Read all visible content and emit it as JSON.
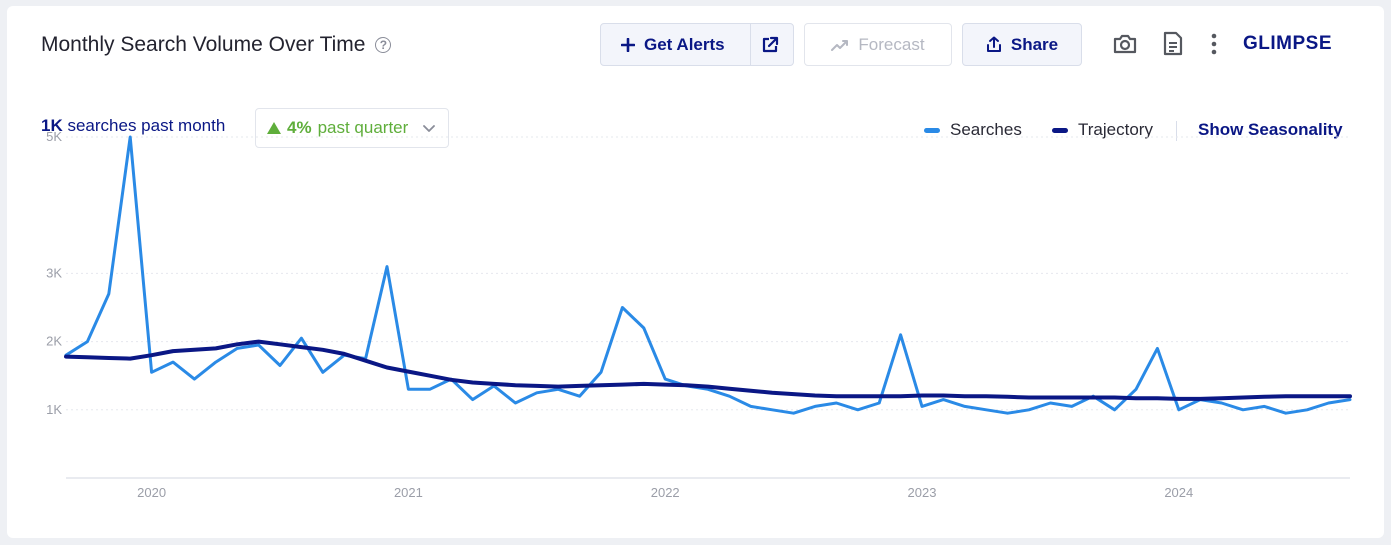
{
  "header": {
    "title": "Monthly Search Volume Over Time",
    "help_icon": "question-circle-icon",
    "buttons": {
      "get_alerts": "Get Alerts",
      "forecast": "Forecast",
      "share": "Share"
    },
    "icons": [
      "plus-icon",
      "external-link-icon",
      "trend-icon",
      "share-upload-icon",
      "camera-icon",
      "document-icon",
      "more-vertical-icon"
    ],
    "logo": "GLIMPSE"
  },
  "summary": {
    "value": "1K",
    "text": "searches past month"
  },
  "quarter": {
    "value": "4%",
    "text": "past quarter",
    "direction": "up"
  },
  "legend": {
    "searches": "Searches",
    "trajectory": "Trajectory",
    "show_seasonality": "Show Seasonality"
  },
  "colors": {
    "searches": "#2a8ae6",
    "trajectory": "#0a1785",
    "accent": "#0a1785",
    "positive": "#5fae3b"
  },
  "chart_data": {
    "type": "line",
    "title": "Monthly Search Volume Over Time",
    "xlabel": "",
    "ylabel": "",
    "x_range": [
      "2019-09",
      "2024-09"
    ],
    "x_ticks": [
      "2020",
      "2021",
      "2022",
      "2023",
      "2024"
    ],
    "y_ticks": [
      "1K",
      "2K",
      "3K",
      "5K"
    ],
    "ylim": [
      0,
      5000
    ],
    "grid": true,
    "legend_position": "top-right",
    "series": [
      {
        "name": "Searches",
        "color": "#2a8ae6",
        "x": [
          "2019-09",
          "2019-10",
          "2019-11",
          "2019-12",
          "2020-01",
          "2020-02",
          "2020-03",
          "2020-04",
          "2020-05",
          "2020-06",
          "2020-07",
          "2020-08",
          "2020-09",
          "2020-10",
          "2020-11",
          "2020-12",
          "2021-01",
          "2021-02",
          "2021-03",
          "2021-04",
          "2021-05",
          "2021-06",
          "2021-07",
          "2021-08",
          "2021-09",
          "2021-10",
          "2021-11",
          "2021-12",
          "2022-01",
          "2022-02",
          "2022-03",
          "2022-04",
          "2022-05",
          "2022-06",
          "2022-07",
          "2022-08",
          "2022-09",
          "2022-10",
          "2022-11",
          "2022-12",
          "2023-01",
          "2023-02",
          "2023-03",
          "2023-04",
          "2023-05",
          "2023-06",
          "2023-07",
          "2023-08",
          "2023-09",
          "2023-10",
          "2023-11",
          "2023-12",
          "2024-01",
          "2024-02",
          "2024-03",
          "2024-04",
          "2024-05",
          "2024-06",
          "2024-07",
          "2024-08",
          "2024-09"
        ],
        "values": [
          1800,
          2000,
          2700,
          5000,
          1550,
          1700,
          1450,
          1700,
          1900,
          1950,
          1650,
          2050,
          1550,
          1800,
          1750,
          3100,
          1300,
          1300,
          1450,
          1150,
          1350,
          1100,
          1250,
          1300,
          1200,
          1550,
          2500,
          2200,
          1450,
          1350,
          1300,
          1200,
          1050,
          1000,
          950,
          1050,
          1100,
          1000,
          1100,
          2100,
          1050,
          1150,
          1050,
          1000,
          950,
          1000,
          1100,
          1050,
          1200,
          1000,
          1300,
          1900,
          1000,
          1150,
          1100,
          1000,
          1050,
          950,
          1000,
          1100,
          1150
        ]
      },
      {
        "name": "Trajectory",
        "color": "#0a1785",
        "x": [
          "2019-09",
          "2019-10",
          "2019-11",
          "2019-12",
          "2020-01",
          "2020-02",
          "2020-03",
          "2020-04",
          "2020-05",
          "2020-06",
          "2020-07",
          "2020-08",
          "2020-09",
          "2020-10",
          "2020-11",
          "2020-12",
          "2021-01",
          "2021-02",
          "2021-03",
          "2021-04",
          "2021-05",
          "2021-06",
          "2021-07",
          "2021-08",
          "2021-09",
          "2021-10",
          "2021-11",
          "2021-12",
          "2022-01",
          "2022-02",
          "2022-03",
          "2022-04",
          "2022-05",
          "2022-06",
          "2022-07",
          "2022-08",
          "2022-09",
          "2022-10",
          "2022-11",
          "2022-12",
          "2023-01",
          "2023-02",
          "2023-03",
          "2023-04",
          "2023-05",
          "2023-06",
          "2023-07",
          "2023-08",
          "2023-09",
          "2023-10",
          "2023-11",
          "2023-12",
          "2024-01",
          "2024-02",
          "2024-03",
          "2024-04",
          "2024-05",
          "2024-06",
          "2024-07",
          "2024-08",
          "2024-09"
        ],
        "values": [
          1780,
          1770,
          1760,
          1750,
          1800,
          1860,
          1880,
          1900,
          1960,
          2000,
          1960,
          1920,
          1880,
          1820,
          1720,
          1620,
          1560,
          1500,
          1440,
          1400,
          1380,
          1360,
          1350,
          1340,
          1350,
          1360,
          1370,
          1380,
          1370,
          1360,
          1340,
          1310,
          1280,
          1250,
          1230,
          1210,
          1200,
          1200,
          1200,
          1200,
          1210,
          1210,
          1200,
          1200,
          1190,
          1180,
          1180,
          1180,
          1180,
          1180,
          1170,
          1170,
          1160,
          1160,
          1170,
          1180,
          1190,
          1200,
          1200,
          1200,
          1200
        ]
      }
    ]
  }
}
